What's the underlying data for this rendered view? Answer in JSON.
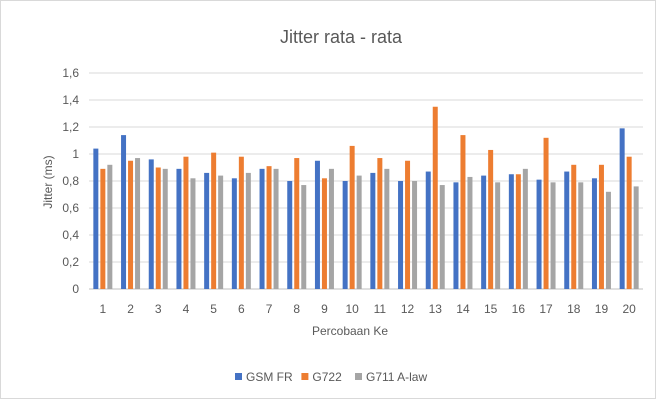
{
  "chart_data": {
    "type": "bar",
    "title": "Jitter rata - rata",
    "xlabel": "Percobaan Ke",
    "ylabel": "Jitter (ms)",
    "ylim": [
      0,
      1.6
    ],
    "yticks": [
      "0",
      "0,2",
      "0,4",
      "0,6",
      "0,8",
      "1",
      "1,2",
      "1,4",
      "1,6"
    ],
    "grid": true,
    "legend_position": "bottom",
    "categories": [
      "1",
      "2",
      "3",
      "4",
      "5",
      "6",
      "7",
      "8",
      "9",
      "10",
      "11",
      "12",
      "13",
      "14",
      "15",
      "16",
      "17",
      "18",
      "19",
      "20"
    ],
    "series": [
      {
        "name": "GSM FR",
        "color": "#4472C4",
        "values": [
          1.04,
          1.14,
          0.96,
          0.89,
          0.86,
          0.82,
          0.89,
          0.8,
          0.95,
          0.8,
          0.86,
          0.8,
          0.87,
          0.79,
          0.84,
          0.85,
          0.81,
          0.87,
          0.82,
          1.19
        ]
      },
      {
        "name": "G722",
        "color": "#ED7D31",
        "values": [
          0.89,
          0.95,
          0.9,
          0.98,
          1.01,
          0.98,
          0.91,
          0.97,
          0.82,
          1.06,
          0.97,
          0.95,
          1.35,
          1.14,
          1.03,
          0.85,
          1.12,
          0.92,
          0.92,
          0.98
        ]
      },
      {
        "name": "G711 A-law",
        "color": "#A5A5A5",
        "values": [
          0.92,
          0.97,
          0.89,
          0.82,
          0.84,
          0.86,
          0.89,
          0.77,
          0.89,
          0.84,
          0.89,
          0.8,
          0.77,
          0.83,
          0.79,
          0.89,
          0.79,
          0.79,
          0.72,
          0.76
        ]
      }
    ]
  }
}
